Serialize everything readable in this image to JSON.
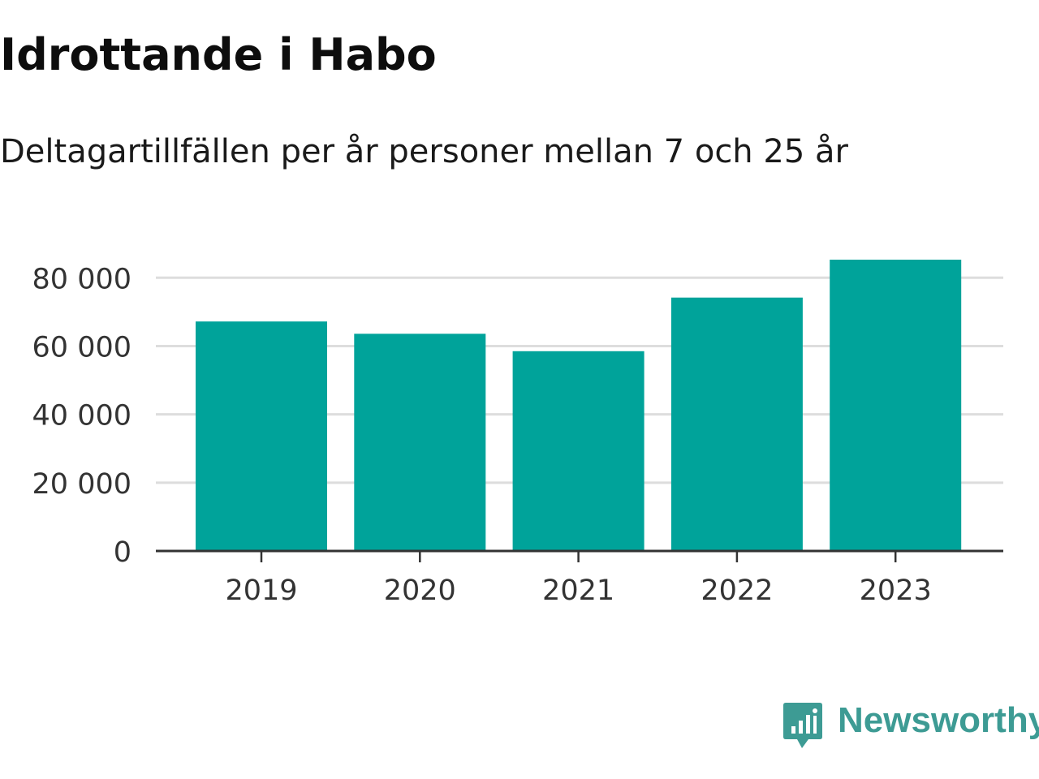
{
  "header": {
    "title": "Idrottande i Habo",
    "subtitle": "Deltagartillfällen per år personer mellan 7 och 25 år"
  },
  "brand": {
    "name": "Newsworthy",
    "icon": "newsworthy-logo-icon",
    "color": "#3d9b94"
  },
  "chart_data": {
    "type": "bar",
    "categories": [
      "2019",
      "2020",
      "2021",
      "2022",
      "2023"
    ],
    "values": [
      67200,
      63600,
      58500,
      74200,
      85300
    ],
    "ylim": [
      0,
      85300
    ],
    "yticks": [
      0,
      20000,
      40000,
      60000,
      80000
    ],
    "ytick_labels": [
      "0",
      "20 000",
      "40 000",
      "60 000",
      "80 000"
    ],
    "xlabel": "",
    "ylabel": "",
    "grid": true,
    "bar_color": "#00a39a",
    "grid_color": "#dddddd",
    "axis_color": "#333333"
  }
}
